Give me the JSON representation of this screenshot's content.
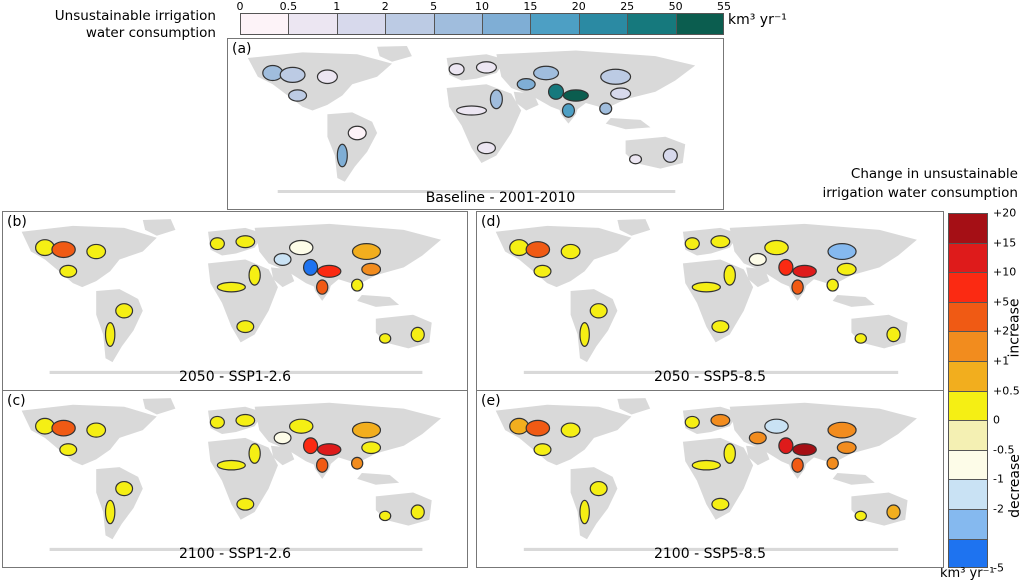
{
  "legend_top": {
    "title_line1": "Unsustainable irrigation",
    "title_line2": "water consumption",
    "ticks": [
      "0",
      "0.5",
      "1",
      "2",
      "5",
      "10",
      "15",
      "20",
      "25",
      "50",
      "55"
    ],
    "colors": [
      "#fdf3f8",
      "#ece6f2",
      "#d7d9ec",
      "#bccbe4",
      "#a0bddd",
      "#7faed5",
      "#4d9fc4",
      "#2b8aa3",
      "#16797d",
      "#0b5d4f"
    ],
    "unit": "km³ yr⁻¹"
  },
  "legend_right": {
    "title_line1": "Change in unsustainable",
    "title_line2": "irrigation water consumption",
    "ticks": [
      "+20",
      "+15",
      "+10",
      "+5",
      "+2",
      "+1",
      "+0.5",
      "0",
      "-0.5",
      "-1",
      "-2",
      "-5"
    ],
    "colors": [
      "#a50f15",
      "#de1b1b",
      "#fb2a12",
      "#f05a14",
      "#f28c1e",
      "#f2ae1e",
      "#f5ef14",
      "#f4f0b3",
      "#fdfce8",
      "#c9e2f4",
      "#85b9ef",
      "#1e73f0"
    ],
    "increase_label": "increase",
    "decrease_label": "decrease",
    "unit": "km³ yr⁻¹"
  },
  "panels": [
    {
      "letter": "(a)",
      "title": "Baseline - 2001-2010"
    },
    {
      "letter": "(b)",
      "title": "2050 - SSP1-2.6"
    },
    {
      "letter": "(d)",
      "title": "2050 - SSP5-8.5"
    },
    {
      "letter": "(c)",
      "title": "2100 - SSP1-2.6"
    },
    {
      "letter": "(e)",
      "title": "2100 - SSP5-8.5"
    }
  ],
  "map_colors": {
    "land": "#d9d9d9",
    "basin_border": "#333333"
  }
}
